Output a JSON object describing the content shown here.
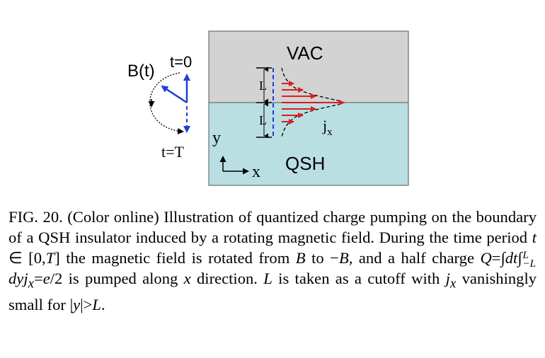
{
  "figure": {
    "labels": {
      "vac": "VAC",
      "qsh": "QSH",
      "bt": "B(t)",
      "t0": "t=0",
      "tT": "t=T",
      "L_top": "L",
      "L_bottom": "L",
      "jx": "j",
      "jx_sub": "x",
      "axis_y": "y",
      "axis_x": "x"
    },
    "colors": {
      "vac_region": "#d3d3d3",
      "qsh_region": "#b9dfe3",
      "field_arrow": "#1f3fd6",
      "current_arrow": "#e01b1b"
    }
  },
  "caption": {
    "fig_label": "FIG. 20.",
    "p1": " (Color online) Illustration of quantized charge pumping on the boundary of a QSH insulator induced by a rotating magnetic field. During the time period ",
    "t": "t",
    "in": " ∈ [0,",
    "T": "T",
    "close": "]",
    "p2": " the magnetic field is rotated from ",
    "B": "B",
    "p3": " to −",
    "B2": "B",
    "p4": ", and a half charge ",
    "Q": "Q",
    "eq1": "=∫",
    "dt": "dt",
    "int2": "∫",
    "sup_L": "L",
    "sub_mL": "−L",
    "dy": "dy",
    "j": "j",
    "sub_x": "x",
    "eq2": "=",
    "e": "e",
    "eq3": "/2",
    "p5": " is pumped along ",
    "x": "x",
    "p6": " direction. ",
    "L": "L",
    "p7": " is taken as a cutoff with ",
    "j2": "j",
    "sub_x2": "x",
    "p8": " vanishingly small for |",
    "y": "y",
    "p9": "|>",
    "L2": "L",
    "p10": "."
  }
}
